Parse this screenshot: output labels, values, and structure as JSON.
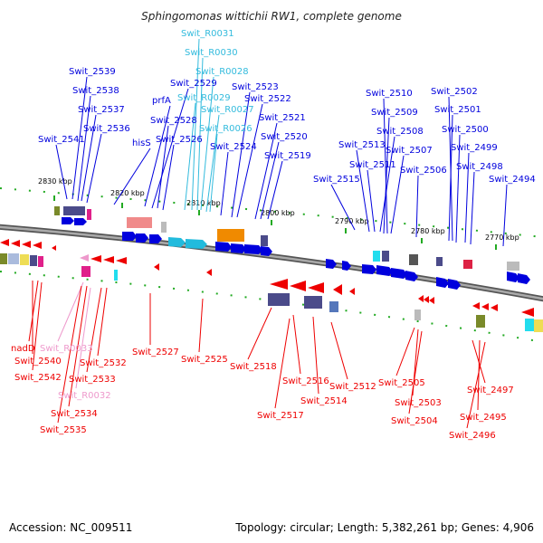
{
  "title": "Sphingomonas wittichii RW1, complete genome",
  "footer": {
    "accession": "Accession: NC_009511",
    "topology": "Topology: circular; Length: 5,382,261 bp; Genes: 4,906"
  },
  "colors": {
    "plus_strand": "#0000dd",
    "minus_strand": "#ee0000",
    "rna_label": "#33bbdd",
    "rna_label_minus": "#ee99cc",
    "backbone": "#888888",
    "tick": "#22aa22"
  },
  "ticks": [
    {
      "label": "2830 kbp"
    },
    {
      "label": "2820 kbp"
    },
    {
      "label": "2810 kbp"
    },
    {
      "label": "2800 kbp"
    },
    {
      "label": "2790 kbp"
    },
    {
      "label": "2780 kbp"
    },
    {
      "label": "2770 kbp"
    }
  ],
  "labels_top": [
    {
      "text": "Swit_2539",
      "kind": "gene"
    },
    {
      "text": "Swit_2538",
      "kind": "gene"
    },
    {
      "text": "Swit_2537",
      "kind": "gene"
    },
    {
      "text": "Swit_2536",
      "kind": "gene"
    },
    {
      "text": "Swit_2541",
      "kind": "gene"
    },
    {
      "text": "hisS",
      "kind": "gene"
    },
    {
      "text": "prfA",
      "kind": "gene"
    },
    {
      "text": "Swit_2529",
      "kind": "gene"
    },
    {
      "text": "Swit_2528",
      "kind": "gene"
    },
    {
      "text": "Swit_2526",
      "kind": "gene"
    },
    {
      "text": "Swit_R0031",
      "kind": "rna"
    },
    {
      "text": "Swit_R0030",
      "kind": "rna"
    },
    {
      "text": "Swit_R0028",
      "kind": "rna"
    },
    {
      "text": "Swit_R0029",
      "kind": "rna"
    },
    {
      "text": "Swit_R0027",
      "kind": "rna"
    },
    {
      "text": "Swit_R0026",
      "kind": "rna"
    },
    {
      "text": "Swit_2524",
      "kind": "gene"
    },
    {
      "text": "Swit_2523",
      "kind": "gene"
    },
    {
      "text": "Swit_2522",
      "kind": "gene"
    },
    {
      "text": "Swit_2521",
      "kind": "gene"
    },
    {
      "text": "Swit_2520",
      "kind": "gene"
    },
    {
      "text": "Swit_2519",
      "kind": "gene"
    },
    {
      "text": "Swit_2510",
      "kind": "gene"
    },
    {
      "text": "Swit_2509",
      "kind": "gene"
    },
    {
      "text": "Swit_2508",
      "kind": "gene"
    },
    {
      "text": "Swit_2513",
      "kind": "gene"
    },
    {
      "text": "Swit_2507",
      "kind": "gene"
    },
    {
      "text": "Swit_2511",
      "kind": "gene"
    },
    {
      "text": "Swit_2515",
      "kind": "gene"
    },
    {
      "text": "Swit_2506",
      "kind": "gene"
    },
    {
      "text": "Swit_2502",
      "kind": "gene"
    },
    {
      "text": "Swit_2501",
      "kind": "gene"
    },
    {
      "text": "Swit_2500",
      "kind": "gene"
    },
    {
      "text": "Swit_2499",
      "kind": "gene"
    },
    {
      "text": "Swit_2498",
      "kind": "gene"
    },
    {
      "text": "Swit_2494",
      "kind": "gene"
    }
  ],
  "labels_bottom": [
    {
      "text": "nadD",
      "kind": "gene"
    },
    {
      "text": "Swit_R0033",
      "kind": "rna"
    },
    {
      "text": "Swit_2540",
      "kind": "gene"
    },
    {
      "text": "Swit_2542",
      "kind": "gene"
    },
    {
      "text": "Swit_2532",
      "kind": "gene"
    },
    {
      "text": "Swit_2533",
      "kind": "gene"
    },
    {
      "text": "Swit_R0032",
      "kind": "rna"
    },
    {
      "text": "Swit_2534",
      "kind": "gene"
    },
    {
      "text": "Swit_2535",
      "kind": "gene"
    },
    {
      "text": "Swit_2527",
      "kind": "gene"
    },
    {
      "text": "Swit_2525",
      "kind": "gene"
    },
    {
      "text": "Swit_2518",
      "kind": "gene"
    },
    {
      "text": "Swit_2516",
      "kind": "gene"
    },
    {
      "text": "Swit_2514",
      "kind": "gene"
    },
    {
      "text": "Swit_2517",
      "kind": "gene"
    },
    {
      "text": "Swit_2512",
      "kind": "gene"
    },
    {
      "text": "Swit_2505",
      "kind": "gene"
    },
    {
      "text": "Swit_2503",
      "kind": "gene"
    },
    {
      "text": "Swit_2504",
      "kind": "gene"
    },
    {
      "text": "Swit_2497",
      "kind": "gene"
    },
    {
      "text": "Swit_2495",
      "kind": "gene"
    },
    {
      "text": "Swit_2496",
      "kind": "gene"
    }
  ]
}
